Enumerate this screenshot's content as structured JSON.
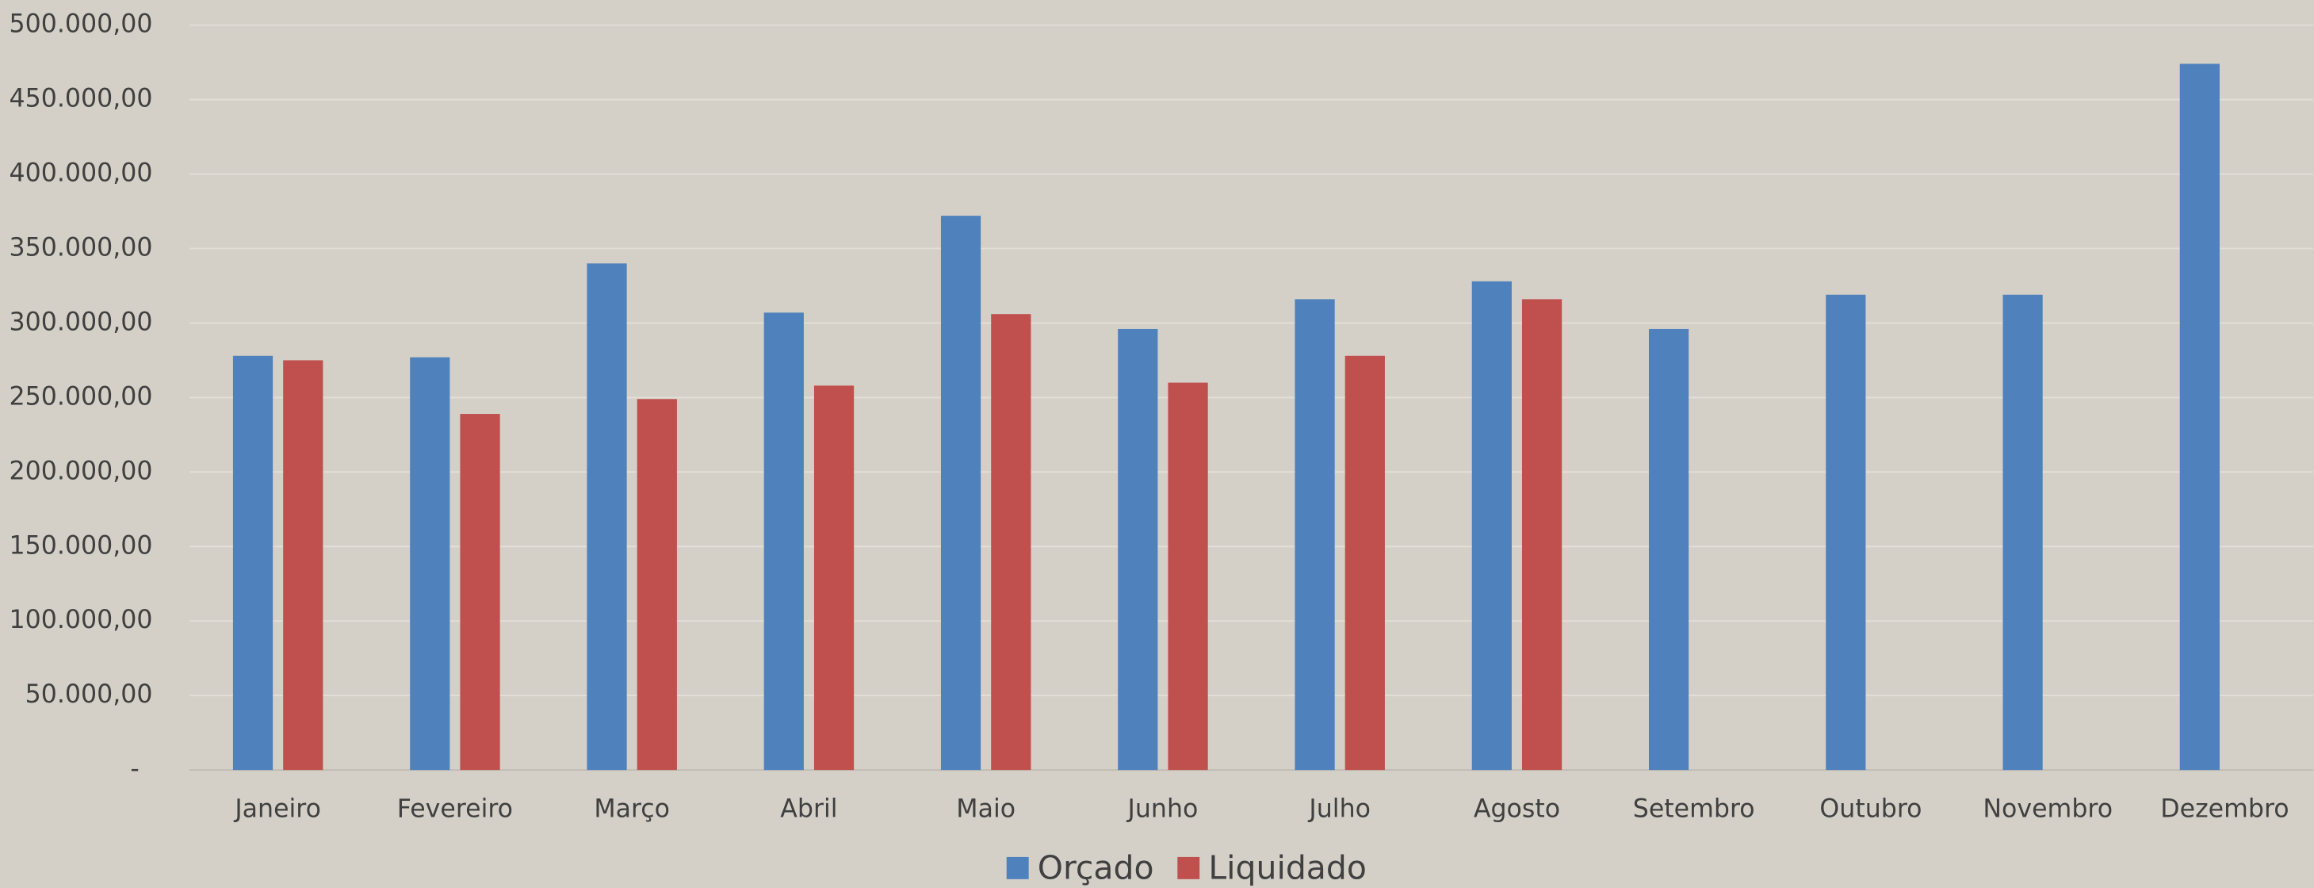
{
  "chart_data": {
    "type": "bar",
    "categories": [
      "Janeiro",
      "Fevereiro",
      "Março",
      "Abril",
      "Maio",
      "Junho",
      "Julho",
      "Agosto",
      "Setembro",
      "Outubro",
      "Novembro",
      "Dezembro"
    ],
    "series": [
      {
        "name": "Orçado",
        "color": "#4f81bd",
        "values": [
          278000,
          277000,
          340000,
          307000,
          372000,
          296000,
          316000,
          328000,
          296000,
          319000,
          319000,
          474000
        ]
      },
      {
        "name": "Liquidado",
        "color": "#c0504d",
        "values": [
          275000,
          239000,
          249000,
          258000,
          306000,
          260000,
          278000,
          316000,
          null,
          null,
          null,
          null
        ]
      }
    ],
    "ylim": [
      0,
      500000
    ],
    "yticks": [
      {
        "value": 0,
        "label": "-"
      },
      {
        "value": 50000,
        "label": "50.000,00"
      },
      {
        "value": 100000,
        "label": "100.000,00"
      },
      {
        "value": 150000,
        "label": "150.000,00"
      },
      {
        "value": 200000,
        "label": "200.000,00"
      },
      {
        "value": 250000,
        "label": "250.000,00"
      },
      {
        "value": 300000,
        "label": "300.000,00"
      },
      {
        "value": 350000,
        "label": "350.000,00"
      },
      {
        "value": 400000,
        "label": "400.000,00"
      },
      {
        "value": 450000,
        "label": "450.000,00"
      },
      {
        "value": 500000,
        "label": "500.000,00"
      }
    ],
    "grid": true,
    "legend": "bottom"
  }
}
